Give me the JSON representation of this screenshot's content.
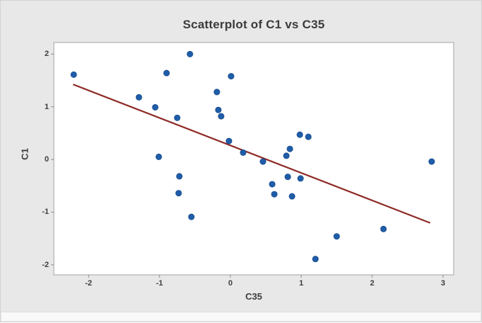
{
  "window": {
    "bg": "#e8e8e8",
    "plot_bg": "#ffffff"
  },
  "chart_data": {
    "type": "scatter",
    "title": "Scatterplot of C1 vs C35",
    "xlabel": "C35",
    "ylabel": "C1",
    "x_ticks": [
      -2,
      -1,
      0,
      1,
      2,
      3
    ],
    "y_ticks": [
      -2,
      -1,
      0,
      1,
      2
    ],
    "xlim": [
      -2.49,
      3.15
    ],
    "ylim": [
      -2.19,
      2.22
    ],
    "grid": "off",
    "legend": "none",
    "points": [
      [
        -2.21,
        1.61
      ],
      [
        -1.29,
        1.18
      ],
      [
        -1.06,
        0.99
      ],
      [
        -1.01,
        0.05
      ],
      [
        -0.9,
        1.64
      ],
      [
        -0.75,
        0.79
      ],
      [
        -0.73,
        -0.64
      ],
      [
        -0.72,
        -0.32
      ],
      [
        -0.57,
        2.0
      ],
      [
        -0.55,
        -1.09
      ],
      [
        -0.19,
        1.28
      ],
      [
        -0.17,
        0.94
      ],
      [
        -0.13,
        0.82
      ],
      [
        -0.02,
        0.35
      ],
      [
        0.01,
        1.58
      ],
      [
        0.18,
        0.13
      ],
      [
        0.46,
        -0.04
      ],
      [
        0.59,
        -0.47
      ],
      [
        0.62,
        -0.66
      ],
      [
        0.79,
        0.07
      ],
      [
        0.81,
        -0.33
      ],
      [
        0.84,
        0.2
      ],
      [
        0.87,
        -0.7
      ],
      [
        0.98,
        0.47
      ],
      [
        0.99,
        -0.36
      ],
      [
        1.1,
        0.43
      ],
      [
        1.2,
        -1.89
      ],
      [
        1.5,
        -1.46
      ],
      [
        2.16,
        -1.32
      ],
      [
        2.84,
        -0.04
      ]
    ],
    "fit_line": {
      "x1": -2.21,
      "y1": 1.42,
      "x2": 2.81,
      "y2": -1.2
    },
    "colors": {
      "point_fill": "#1f5da8",
      "point_edge": "#174a8c",
      "fit_line": "#8e2a26",
      "frame": "#a3a3a3",
      "tick": "#8a8a8a",
      "text": "#3d3d3d"
    }
  }
}
